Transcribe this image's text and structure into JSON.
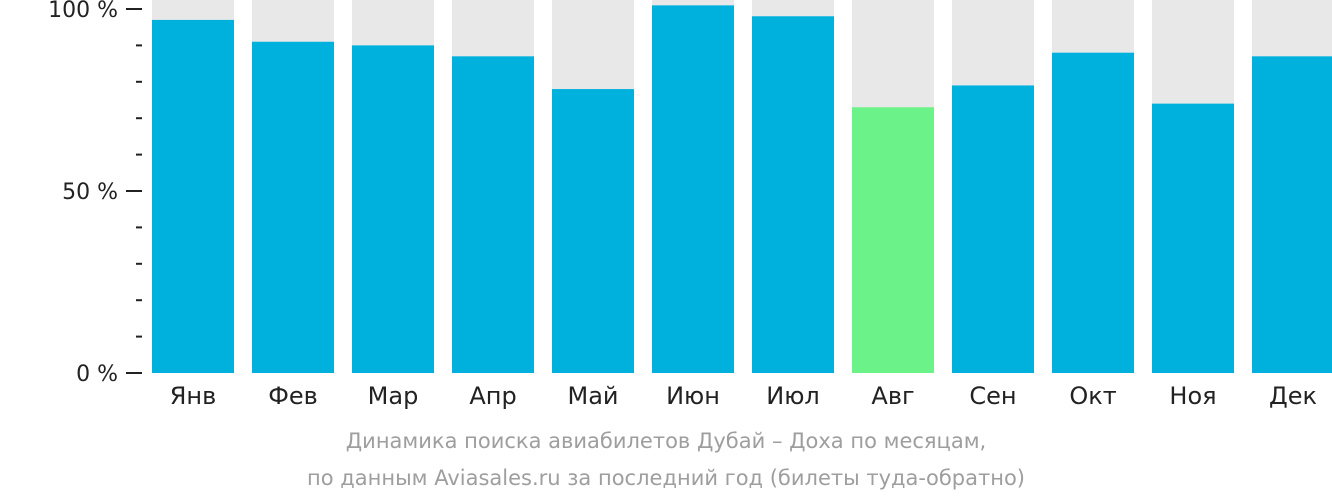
{
  "chart_data": {
    "type": "bar",
    "categories": [
      "Янв",
      "Фев",
      "Мар",
      "Апр",
      "Май",
      "Июн",
      "Июл",
      "Авг",
      "Сен",
      "Окт",
      "Ноя",
      "Дек"
    ],
    "values": [
      97,
      91,
      90,
      87,
      78,
      101,
      98,
      73,
      79,
      88,
      74,
      87
    ],
    "highlight_category": "Авг",
    "ylim": [
      0,
      100
    ],
    "y_ticks": [
      {
        "value": 100,
        "label": "100 %"
      },
      {
        "value": 50,
        "label": "50 %"
      },
      {
        "value": 0,
        "label": "0 %"
      }
    ],
    "y_minor_tick_step": 10,
    "grid": false,
    "colors": {
      "bar": "#00b0dd",
      "highlight": "#6bf288",
      "background_track": "#e8e8e8",
      "axis": "#222222"
    }
  },
  "caption": {
    "line1": "Динамика поиска авиабилетов Дубай – Доха по месяцам,",
    "line2": "по данным Aviasales.ru за последний год (билеты туда-обратно)"
  }
}
